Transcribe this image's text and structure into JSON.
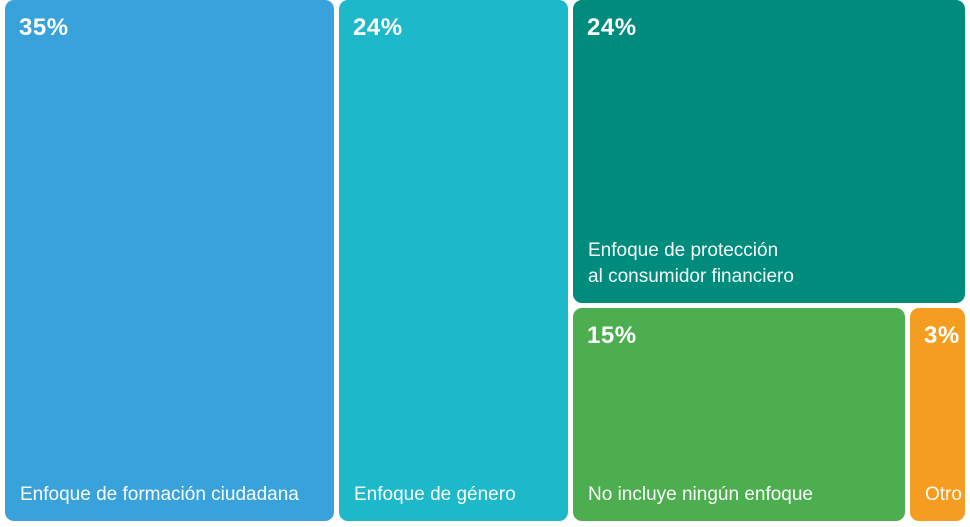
{
  "chart_data": {
    "type": "treemap",
    "title": "",
    "unit": "%",
    "legend": "none",
    "background": "#ffffff",
    "series": [
      {
        "label": "Enfoque de formación ciudadana",
        "value": 35,
        "value_label": "35%",
        "color": "#3AA2DB"
      },
      {
        "label": "Enfoque de género",
        "value": 24,
        "value_label": "24%",
        "color": "#1EB8CB"
      },
      {
        "label": "Enfoque de protección\nal consumidor financiero",
        "value": 24,
        "value_label": "24%",
        "color": "#008C7D"
      },
      {
        "label": "No incluye ningún enfoque",
        "value": 15,
        "value_label": "15%",
        "color": "#4DAE50"
      },
      {
        "label": "Otro",
        "value": 3,
        "value_label": "3%",
        "color": "#F59D20"
      }
    ]
  }
}
